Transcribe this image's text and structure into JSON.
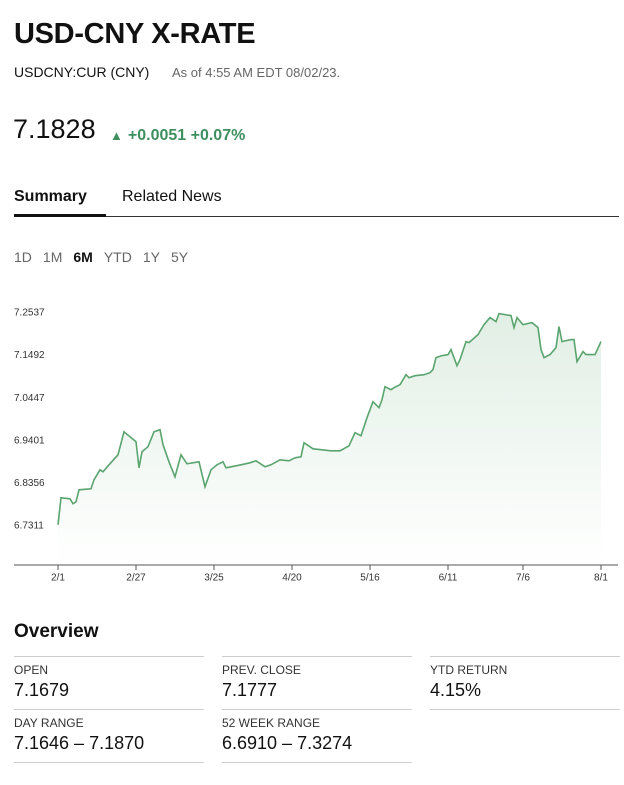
{
  "header": {
    "title": "USD-CNY X-RATE",
    "ticker": "USDCNY:CUR (CNY)",
    "as_of": "As of 4:55 AM EDT 08/02/23.",
    "price": "7.1828",
    "change": "+0.0051",
    "change_pct": "+0.07%"
  },
  "tabs": [
    "Summary",
    "Related News"
  ],
  "active_tab": 0,
  "ranges": [
    "1D",
    "1M",
    "6M",
    "YTD",
    "1Y",
    "5Y"
  ],
  "active_range": 2,
  "chart_data": {
    "type": "line",
    "color": "#5aa46e",
    "area": true,
    "grid": false,
    "x": [
      "2/1",
      "2/2",
      "2/5",
      "2/6",
      "2/7",
      "2/8",
      "2/12",
      "2/13",
      "2/15",
      "2/16",
      "2/18",
      "2/21",
      "2/23",
      "2/27",
      "2/28",
      "3/1",
      "3/3",
      "3/5",
      "3/7",
      "3/8",
      "3/10",
      "3/12",
      "3/14",
      "3/16",
      "3/20",
      "3/22",
      "3/24",
      "3/26",
      "3/28",
      "3/29",
      "4/3",
      "4/6",
      "4/8",
      "4/11",
      "4/13",
      "4/16",
      "4/19",
      "4/21",
      "4/23",
      "4/24",
      "4/27",
      "5/3",
      "5/6",
      "5/9",
      "5/11",
      "5/13",
      "5/15",
      "5/17",
      "5/19",
      "5/20",
      "5/21",
      "5/23",
      "5/24",
      "5/26",
      "5/28",
      "5/29",
      "5/31",
      "6/3",
      "6/5",
      "6/6",
      "6/7",
      "6/9",
      "6/11",
      "6/12",
      "6/14",
      "6/15",
      "6/17",
      "6/18",
      "6/21",
      "6/23",
      "6/25",
      "6/27",
      "6/28",
      "7/2",
      "7/3",
      "7/4",
      "7/6",
      "7/9",
      "7/11",
      "7/12",
      "7/13",
      "7/15",
      "7/17",
      "7/18",
      "7/19",
      "7/22",
      "7/23",
      "7/24",
      "7/26",
      "7/27",
      "7/30",
      "8/1"
    ],
    "values": [
      6.7336,
      6.8,
      6.7975,
      6.7852,
      6.7901,
      6.8196,
      6.8221,
      6.8442,
      6.8688,
      6.8639,
      6.8811,
      6.9057,
      6.9622,
      6.9377,
      6.8737,
      6.9131,
      6.9254,
      6.9622,
      6.9672,
      6.9303,
      6.8885,
      6.8516,
      6.9057,
      6.8836,
      6.8885,
      6.827,
      6.8688,
      6.8811,
      6.8885,
      6.8737,
      6.8811,
      6.886,
      6.8909,
      6.8762,
      6.8811,
      6.8934,
      6.8909,
      6.8983,
      6.9008,
      6.9352,
      6.9204,
      6.9155,
      6.9155,
      6.9278,
      6.9598,
      6.9524,
      6.9967,
      7.036,
      7.0213,
      7.0409,
      7.0729,
      7.0655,
      7.0704,
      7.0778,
      7.1024,
      7.095,
      7.0999,
      7.1024,
      7.1073,
      7.1147,
      7.1442,
      7.1491,
      7.1516,
      7.1639,
      7.1245,
      7.1393,
      7.1835,
      7.1811,
      7.2008,
      7.2253,
      7.2426,
      7.2327,
      7.2524,
      7.2475,
      7.218,
      7.2426,
      7.2253,
      7.2303,
      7.218,
      7.1639,
      7.1442,
      7.1516,
      7.1688,
      7.2204,
      7.1835,
      7.1885,
      7.1885,
      7.1344,
      7.159,
      7.1516,
      7.1516,
      7.1835
    ],
    "xticks": [
      "2/1",
      "2/27",
      "3/25",
      "4/20",
      "5/16",
      "6/11",
      "7/6",
      "8/1"
    ],
    "ylim": [
      6.635,
      7.298
    ],
    "yticks": [
      6.7311,
      6.8356,
      6.9401,
      7.0447,
      7.1492,
      7.2537
    ]
  },
  "overview": {
    "title": "Overview",
    "items": [
      {
        "label": "OPEN",
        "value": "7.1679"
      },
      {
        "label": "PREV. CLOSE",
        "value": "7.1777"
      },
      {
        "label": "YTD RETURN",
        "value": "4.15%"
      },
      {
        "label": "DAY RANGE",
        "value": "7.1646 – 7.1870"
      },
      {
        "label": "52 WEEK RANGE",
        "value": "6.6910 – 7.3274"
      }
    ]
  }
}
